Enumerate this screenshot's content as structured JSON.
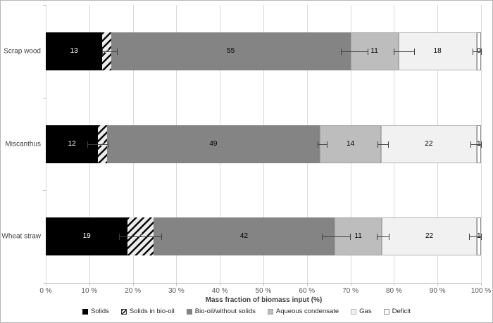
{
  "chart_data": {
    "type": "bar",
    "variant": "horizontal-stacked",
    "title": "",
    "xlabel": "Mass fraction of biomass input (%)",
    "ylabel": "",
    "xlim": [
      0,
      100
    ],
    "x_tick_labels": [
      "0 %",
      "10 %",
      "20 %",
      "30 %",
      "40 %",
      "50 %",
      "60 %",
      "70 %",
      "80 %",
      "90 %",
      "100 %"
    ],
    "grid": "vertical",
    "legend_position": "bottom",
    "categories": [
      "Scrap wood",
      "Miscanthus",
      "Wheat straw"
    ],
    "series": [
      {
        "name": "Solids",
        "style": "solid",
        "color": "#000000",
        "border": "",
        "label_color": "#ffffff",
        "values": [
          13,
          12,
          19
        ]
      },
      {
        "name": "Solids in bio-oil",
        "style": "diagonal-hatch",
        "color": "#0a0a0a",
        "border": "",
        "label_color": "#ffffff",
        "values": [
          2,
          2,
          6
        ]
      },
      {
        "name": "Bio-oil/without solids",
        "style": "solid",
        "color": "#848484",
        "border": "",
        "label_color": "#000000",
        "values": [
          55,
          49,
          42
        ]
      },
      {
        "name": "Aqueous condensate",
        "style": "solid",
        "color": "#bdbdbd",
        "border": "#a3a3a3",
        "label_color": "#000000",
        "values": [
          11,
          14,
          11
        ]
      },
      {
        "name": "Gas",
        "style": "solid",
        "color": "#f1f1f1",
        "border": "#b5b5b5",
        "label_color": "#000000",
        "values": [
          18,
          22,
          22
        ]
      },
      {
        "name": "Deficit",
        "style": "solid",
        "color": "#ffffff",
        "border": "#8c8c8c",
        "label_color": "#000000",
        "values": [
          0,
          1,
          1
        ]
      }
    ],
    "error_bars_pct": [
      [
        [
          12.9,
          16.4
        ],
        [
          67.8,
          73.9
        ],
        [
          80.0,
          84.7
        ],
        [
          98.0,
          100.0
        ]
      ],
      [
        [
          9.6,
          14.3
        ],
        [
          62.5,
          64.5
        ],
        [
          76.2,
          78.7
        ],
        [
          97.6,
          100.0
        ]
      ],
      [
        [
          16.8,
          26.5
        ],
        [
          63.4,
          69.9
        ],
        [
          76.1,
          78.8
        ],
        [
          97.2,
          100.0
        ]
      ]
    ],
    "style_colors": {
      "gridline": "#d9d9d9",
      "axis": "#bfbfbf",
      "error_bar": "#3f3f3f",
      "tick_text": "#595959",
      "background": "#ffffff"
    }
  }
}
